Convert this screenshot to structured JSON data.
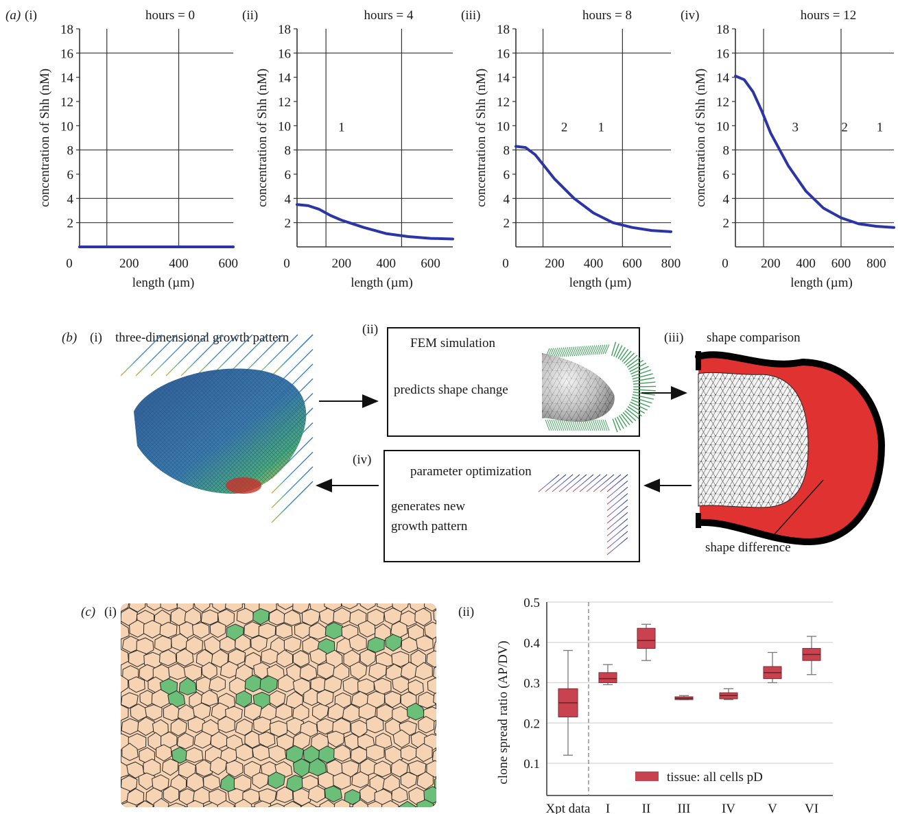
{
  "panel_a": {
    "label": "(a)",
    "ylabel": "concentration of Shh (nM)",
    "xlabel": "length (µm)",
    "charts": [
      {
        "roman": "(i)",
        "title": "hours = 0",
        "xticks": [
          "200",
          "400",
          "600"
        ],
        "yticks": [
          "2",
          "4",
          "6",
          "8",
          "10",
          "12",
          "14",
          "16",
          "18"
        ],
        "origin_label": "0",
        "region_labels": []
      },
      {
        "roman": "(ii)",
        "title": "hours = 4",
        "xticks": [
          "200",
          "400",
          "600"
        ],
        "yticks": [
          "2",
          "4",
          "6",
          "8",
          "10",
          "12",
          "14",
          "16",
          "18"
        ],
        "origin_label": "0",
        "region_labels": [
          "1"
        ]
      },
      {
        "roman": "(iii)",
        "title": "hours = 8",
        "xticks": [
          "200",
          "400",
          "600",
          "800"
        ],
        "yticks": [
          "2",
          "4",
          "6",
          "8",
          "10",
          "12",
          "14",
          "16",
          "18"
        ],
        "origin_label": "0",
        "region_labels": [
          "2",
          "1"
        ]
      },
      {
        "roman": "(iv)",
        "title": "hours = 12",
        "xticks": [
          "200",
          "400",
          "600",
          "800"
        ],
        "yticks": [
          "2",
          "4",
          "6",
          "8",
          "10",
          "12",
          "14",
          "16",
          "18"
        ],
        "origin_label": "0",
        "region_labels": [
          "3",
          "2",
          "1"
        ]
      }
    ]
  },
  "panel_b": {
    "label": "(b)",
    "step1": {
      "roman": "(i)",
      "title": "three-dimensional growth pattern"
    },
    "step2": {
      "roman": "(ii)",
      "title": "FEM simulation",
      "text": "predicts shape change"
    },
    "step3": {
      "roman": "(iii)",
      "title": "shape comparison",
      "annotation": "shape difference"
    },
    "step4": {
      "roman": "(iv)",
      "title": "parameter optimization",
      "text_line1": "generates new",
      "text_line2": "growth pattern"
    }
  },
  "panel_c": {
    "label": "(c)",
    "sub_i": "(i)",
    "sub_ii": "(ii)",
    "legend": "tissue: all cells pD"
  },
  "colors": {
    "curve": "#2b35a6",
    "box": "#c8424f",
    "red": "#e03331",
    "cell": "#f6d3b2",
    "clone": "#6cbf78",
    "grid": "#333333"
  },
  "chart_data": [
    {
      "type": "line",
      "title": "hours = 0",
      "xlabel": "length (µm)",
      "ylabel": "concentration of Shh (nM)",
      "ylim": [
        0,
        18
      ],
      "xlim": [
        0,
        620
      ],
      "x": [
        0,
        100,
        200,
        300,
        400,
        500,
        620
      ],
      "y": [
        0,
        0,
        0,
        0,
        0,
        0,
        0
      ],
      "vlines": [
        110,
        400
      ],
      "hlines": [
        2,
        4,
        8,
        16
      ]
    },
    {
      "type": "line",
      "title": "hours = 4",
      "xlabel": "length (µm)",
      "ylabel": "concentration of Shh (nM)",
      "ylim": [
        0,
        18
      ],
      "xlim": [
        0,
        700
      ],
      "x": [
        0,
        50,
        100,
        150,
        200,
        300,
        400,
        500,
        600,
        700
      ],
      "y": [
        3.5,
        3.4,
        3.1,
        2.6,
        2.2,
        1.6,
        1.1,
        0.85,
        0.7,
        0.65
      ],
      "vlines": [
        130,
        470
      ],
      "hlines": [
        2,
        4,
        8,
        16
      ]
    },
    {
      "type": "line",
      "title": "hours = 8",
      "xlabel": "length (µm)",
      "ylabel": "concentration of Shh (nM)",
      "ylim": [
        0,
        18
      ],
      "xlim": [
        0,
        800
      ],
      "x": [
        0,
        50,
        100,
        150,
        200,
        300,
        400,
        500,
        600,
        700,
        800
      ],
      "y": [
        8.3,
        8.2,
        7.6,
        6.6,
        5.6,
        4.0,
        2.8,
        2.0,
        1.6,
        1.35,
        1.25
      ],
      "vlines": [
        140,
        550
      ],
      "hlines": [
        2,
        4,
        8,
        16
      ]
    },
    {
      "type": "line",
      "title": "hours = 12",
      "xlabel": "length (µm)",
      "ylabel": "concentration of Shh (nM)",
      "ylim": [
        0,
        18
      ],
      "xlim": [
        0,
        900
      ],
      "x": [
        0,
        50,
        100,
        150,
        200,
        300,
        400,
        500,
        600,
        700,
        800,
        900
      ],
      "y": [
        14.1,
        13.8,
        12.8,
        11.2,
        9.4,
        6.7,
        4.6,
        3.2,
        2.4,
        1.9,
        1.7,
        1.6
      ],
      "vlines": [
        160,
        600
      ],
      "hlines": [
        2,
        4,
        8,
        16
      ]
    },
    {
      "type": "box",
      "title": "",
      "xlabel": "",
      "ylabel": "clone spread ratio (AP/DV)",
      "ylim": [
        0.02,
        0.5
      ],
      "categories": [
        "Xpt data",
        "I",
        "II",
        "III",
        "IV",
        "V",
        "VI"
      ],
      "yticks": [
        "0.1",
        "0.2",
        "0.3",
        "0.4",
        "0.5"
      ],
      "boxes": [
        {
          "min": 0.12,
          "q1": 0.215,
          "median": 0.25,
          "q3": 0.285,
          "max": 0.38
        },
        {
          "min": 0.295,
          "q1": 0.3,
          "median": 0.31,
          "q3": 0.325,
          "max": 0.345
        },
        {
          "min": 0.355,
          "q1": 0.385,
          "median": 0.405,
          "q3": 0.435,
          "max": 0.445
        },
        {
          "min": 0.258,
          "q1": 0.258,
          "median": 0.261,
          "q3": 0.265,
          "max": 0.268
        },
        {
          "min": 0.258,
          "q1": 0.26,
          "median": 0.268,
          "q3": 0.275,
          "max": 0.285
        },
        {
          "min": 0.3,
          "q1": 0.31,
          "median": 0.325,
          "q3": 0.34,
          "max": 0.375
        },
        {
          "min": 0.32,
          "q1": 0.355,
          "median": 0.37,
          "q3": 0.385,
          "max": 0.415
        }
      ]
    }
  ]
}
